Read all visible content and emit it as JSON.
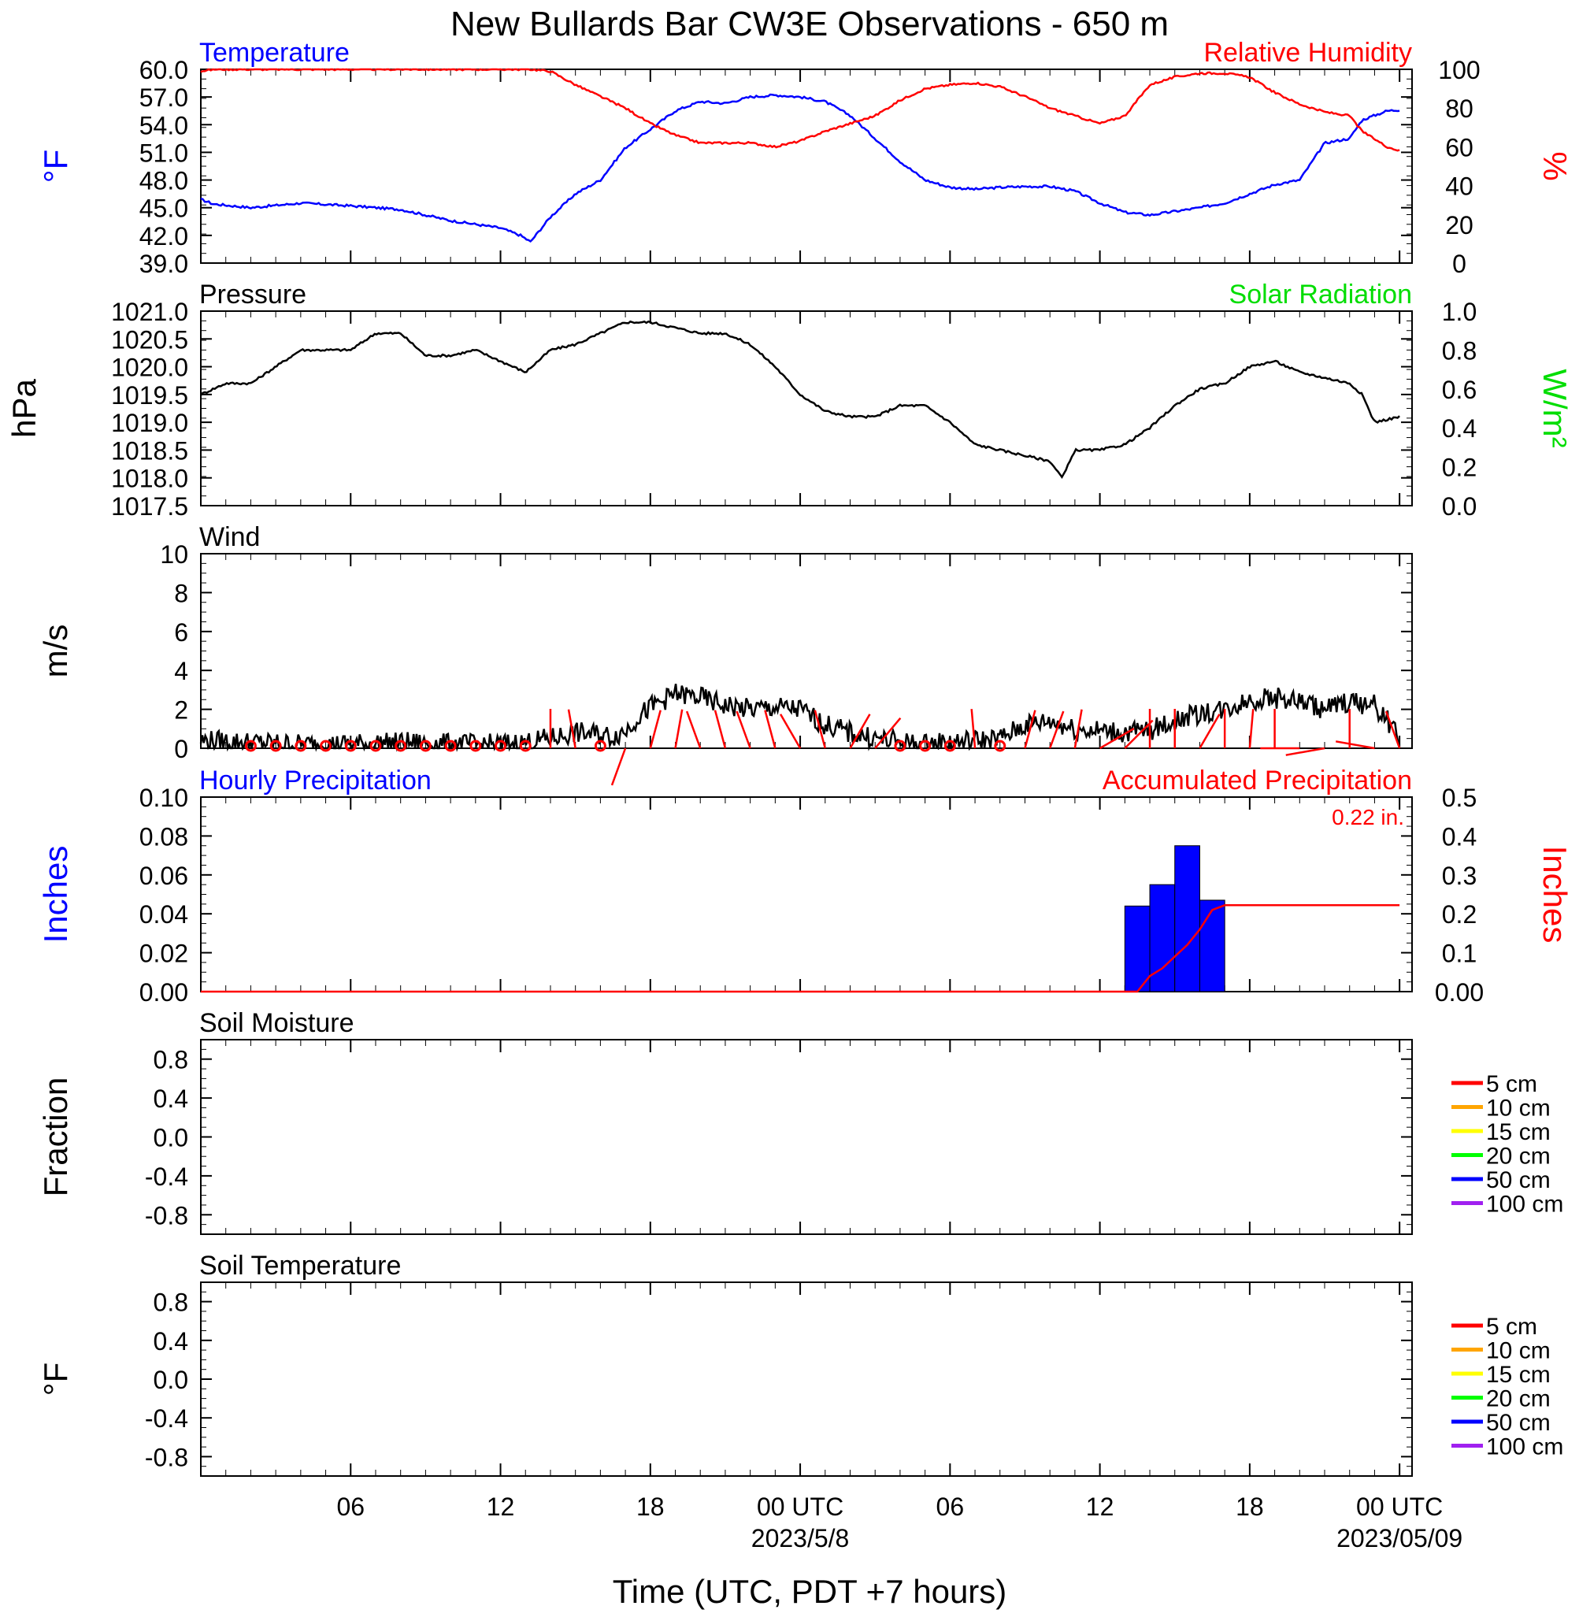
{
  "title": "New Bullards Bar CW3E Observations - 650 m",
  "x_axis_title": "Time (UTC, PDT +7 hours)",
  "x_ticks": [
    {
      "hour": 6,
      "label": "06",
      "date": ""
    },
    {
      "hour": 12,
      "label": "12",
      "date": ""
    },
    {
      "hour": 18,
      "label": "18",
      "date": ""
    },
    {
      "hour": 24,
      "label": "00 UTC",
      "date": "2023/5/8"
    },
    {
      "hour": 30,
      "label": "06",
      "date": ""
    },
    {
      "hour": 36,
      "label": "12",
      "date": ""
    },
    {
      "hour": 42,
      "label": "18",
      "date": ""
    },
    {
      "hour": 48,
      "label": "00 UTC",
      "date": "2023/05/09"
    }
  ],
  "colors": {
    "temperature": "#0000ff",
    "humidity": "#ff0000",
    "solar": "#00dd00",
    "pressure": "#000000",
    "wind": "#000000",
    "barbs": "#ff0000",
    "precip_bar": "#0000ff",
    "accum": "#ff0000"
  },
  "chart_data": [
    {
      "type": "line",
      "id": "temperature-rh",
      "title_left": "Temperature",
      "title_right": "Relative Humidity",
      "ylabel_left": "°F",
      "ylabel_right": "%",
      "ylim_left": [
        39,
        60
      ],
      "ylim_right": [
        0,
        100
      ],
      "yticks_left": [
        "60.0",
        "57.0",
        "54.0",
        "51.0",
        "48.0",
        "45.0",
        "42.0",
        "39.0"
      ],
      "yticks_right": [
        "100",
        "80",
        "60",
        "40",
        "20",
        "0"
      ],
      "x_hours": [
        0,
        0.5,
        2,
        4,
        6,
        8,
        10,
        12,
        12.8,
        13.2,
        14,
        15,
        16,
        17,
        18,
        19,
        20,
        21,
        22,
        23,
        24,
        25,
        26,
        27,
        28,
        29,
        30,
        31,
        32,
        33,
        34,
        35,
        36,
        37,
        38,
        39,
        40,
        41,
        42,
        43,
        44,
        45,
        46,
        46.5,
        47,
        47.5,
        48
      ],
      "series": [
        {
          "name": "Temperature",
          "axis": "left",
          "values": [
            45.9,
            45.4,
            45.0,
            45.5,
            45.2,
            44.8,
            43.6,
            42.8,
            42.0,
            41.3,
            44.0,
            46.5,
            48.0,
            51.5,
            53.5,
            55.5,
            56.5,
            56.3,
            57.0,
            57.2,
            57.0,
            56.5,
            55.0,
            52.5,
            50.0,
            48.0,
            47.2,
            47.0,
            47.2,
            47.3,
            47.3,
            46.8,
            45.5,
            44.5,
            44.2,
            44.6,
            45.0,
            45.5,
            46.5,
            47.5,
            48.0,
            52.0,
            52.5,
            54.5,
            55.0,
            55.5,
            55.6
          ]
        },
        {
          "name": "Relative Humidity",
          "axis": "right",
          "values": [
            99,
            100,
            100,
            100,
            100,
            100,
            100,
            100,
            100,
            100,
            99,
            92,
            86,
            80,
            72,
            66,
            62,
            62,
            62,
            60,
            63,
            68,
            72,
            76,
            84,
            90,
            92,
            93,
            91,
            86,
            80,
            76,
            72,
            76,
            92,
            96,
            98,
            98,
            96,
            88,
            82,
            78,
            76,
            68,
            64,
            60,
            58
          ]
        }
      ]
    },
    {
      "type": "line",
      "id": "pressure",
      "title_left": "Pressure",
      "title_right": "Solar Radiation",
      "ylabel_left": "hPa",
      "ylabel_right": "W/m²",
      "ylim_left": [
        1017.5,
        1021.0
      ],
      "ylim_right": [
        0,
        1
      ],
      "yticks_left": [
        "1021.0",
        "1020.5",
        "1020.0",
        "1019.5",
        "1019.0",
        "1018.5",
        "1018.0",
        "1017.5"
      ],
      "yticks_right": [
        "1.0",
        "0.8",
        "0.6",
        "0.4",
        "0.2",
        "0.0"
      ],
      "x_hours": [
        0,
        1,
        2,
        3,
        4,
        5,
        6,
        7,
        8,
        9,
        10,
        11,
        12,
        13,
        14,
        15,
        16,
        17,
        18,
        19,
        20,
        21,
        22,
        23,
        24,
        25,
        26,
        27,
        28,
        29,
        30,
        31,
        32,
        33,
        34,
        34.5,
        35,
        36,
        37,
        38,
        39,
        40,
        41,
        42,
        43,
        44,
        45,
        46,
        46.5,
        47,
        48
      ],
      "series": [
        {
          "name": "Pressure",
          "axis": "left",
          "values": [
            1019.5,
            1019.7,
            1019.7,
            1020.0,
            1020.3,
            1020.3,
            1020.3,
            1020.6,
            1020.6,
            1020.2,
            1020.2,
            1020.3,
            1020.1,
            1019.9,
            1020.3,
            1020.4,
            1020.6,
            1020.8,
            1020.8,
            1020.7,
            1020.6,
            1020.6,
            1020.4,
            1020.0,
            1019.5,
            1019.2,
            1019.1,
            1019.1,
            1019.3,
            1019.3,
            1019.0,
            1018.6,
            1018.5,
            1018.4,
            1018.3,
            1018.0,
            1018.5,
            1018.5,
            1018.6,
            1018.9,
            1019.3,
            1019.6,
            1019.7,
            1020.0,
            1020.1,
            1019.9,
            1019.8,
            1019.7,
            1019.5,
            1019.0,
            1019.1
          ]
        }
      ]
    },
    {
      "type": "line",
      "id": "wind",
      "title_left": "Wind",
      "ylabel_left": "m/s",
      "ylim_left": [
        0,
        10
      ],
      "yticks_left": [
        "10",
        "8",
        "6",
        "4",
        "2",
        "0"
      ],
      "x_hours": [
        0,
        2,
        4,
        6,
        8,
        10,
        12,
        13,
        14,
        15,
        16,
        16.5,
        17,
        17.5,
        18,
        19,
        20,
        21,
        22,
        23,
        24,
        25,
        26,
        27,
        28,
        29,
        30,
        31,
        32,
        33,
        34,
        35,
        36,
        37,
        38,
        39,
        40,
        41,
        42,
        43,
        44,
        45,
        46,
        47,
        47.5,
        48
      ],
      "series": [
        {
          "name": "Wind speed",
          "axis": "left",
          "values": [
            0.4,
            0.3,
            0.2,
            0.2,
            0.3,
            0.2,
            0.2,
            0.3,
            0.5,
            0.8,
            0.7,
            0.6,
            0.9,
            1.6,
            2.1,
            2.8,
            2.6,
            2.2,
            2.0,
            2.1,
            2.0,
            1.2,
            0.8,
            0.5,
            0.3,
            0.2,
            0.3,
            0.4,
            0.5,
            1.2,
            1.4,
            1.0,
            0.9,
            0.8,
            0.9,
            1.4,
            1.8,
            2.0,
            2.5,
            2.6,
            2.4,
            2.0,
            2.4,
            2.2,
            1.5,
            0.4
          ]
        }
      ],
      "barbs": [
        {
          "hour": 2,
          "calm": true
        },
        {
          "hour": 3,
          "calm": true
        },
        {
          "hour": 4,
          "calm": true
        },
        {
          "hour": 5,
          "calm": true
        },
        {
          "hour": 6,
          "calm": true
        },
        {
          "hour": 7,
          "calm": true
        },
        {
          "hour": 8,
          "calm": true
        },
        {
          "hour": 9,
          "calm": true
        },
        {
          "hour": 10,
          "calm": true
        },
        {
          "hour": 11,
          "calm": true
        },
        {
          "hour": 12,
          "calm": true
        },
        {
          "hour": 13,
          "calm": true
        },
        {
          "hour": 14,
          "dir": 180
        },
        {
          "hour": 15,
          "dir": 170
        },
        {
          "hour": 16,
          "calm": true
        },
        {
          "hour": 17,
          "dir": 20
        },
        {
          "hour": 18,
          "dir": 195
        },
        {
          "hour": 19,
          "dir": 190
        },
        {
          "hour": 20,
          "dir": 160
        },
        {
          "hour": 21,
          "dir": 165
        },
        {
          "hour": 22,
          "dir": 160
        },
        {
          "hour": 23,
          "dir": 165
        },
        {
          "hour": 24,
          "dir": 150
        },
        {
          "hour": 25,
          "dir": 165
        },
        {
          "hour": 26,
          "dir": 210
        },
        {
          "hour": 27,
          "dir": 220
        },
        {
          "hour": 28,
          "calm": true
        },
        {
          "hour": 29,
          "calm": true
        },
        {
          "hour": 30,
          "calm": true
        },
        {
          "hour": 31,
          "dir": 175
        },
        {
          "hour": 32,
          "calm": true
        },
        {
          "hour": 33,
          "dir": 195
        },
        {
          "hour": 34,
          "dir": 200
        },
        {
          "hour": 35,
          "dir": 190
        },
        {
          "hour": 36,
          "dir": 240
        },
        {
          "hour": 37,
          "dir": 225
        },
        {
          "hour": 38,
          "dir": 180
        },
        {
          "hour": 39,
          "dir": 180
        },
        {
          "hour": 40,
          "dir": 210
        },
        {
          "hour": 41,
          "dir": 180
        },
        {
          "hour": 42,
          "dir": 185
        },
        {
          "hour": 43,
          "dir": 180
        },
        {
          "hour": 44,
          "dir": 90
        },
        {
          "hour": 45,
          "dir": 80
        },
        {
          "hour": 46,
          "dir": 180
        },
        {
          "hour": 47,
          "dir": 100
        },
        {
          "hour": 48,
          "dir": 160
        }
      ]
    },
    {
      "type": "bar",
      "id": "precipitation",
      "title_left": "Hourly Precipitation",
      "title_right": "Accumulated Precipitation",
      "total_label": "0.22 in.",
      "ylabel_left": "Inches",
      "ylabel_right": "Inches",
      "ylim_left": [
        0,
        0.1
      ],
      "ylim_right": [
        0,
        0.5
      ],
      "yticks_left": [
        "0.10",
        "0.08",
        "0.06",
        "0.04",
        "0.02",
        "0.00"
      ],
      "yticks_right": [
        "0.5",
        "0.4",
        "0.3",
        "0.2",
        "0.1",
        "0.00"
      ],
      "bars": [
        {
          "start_hour": 37,
          "end_hour": 38,
          "value": 0.044
        },
        {
          "start_hour": 38,
          "end_hour": 39,
          "value": 0.055
        },
        {
          "start_hour": 39,
          "end_hour": 40,
          "value": 0.075
        },
        {
          "start_hour": 40,
          "end_hour": 41,
          "value": 0.047
        }
      ],
      "accum_x_hours": [
        0,
        37.5,
        38,
        38.5,
        39,
        39.5,
        40,
        40.5,
        41,
        48
      ],
      "accum_values": [
        0,
        0,
        0.04,
        0.06,
        0.09,
        0.12,
        0.16,
        0.21,
        0.222,
        0.222
      ]
    },
    {
      "type": "line",
      "id": "soil-moisture",
      "title_left": "Soil Moisture",
      "ylabel_left": "Fraction",
      "ylim_left": [
        -1,
        1
      ],
      "yticks_left": [
        "0.8",
        "0.4",
        "0.0",
        "-0.4",
        "-0.8"
      ],
      "legend": [
        {
          "label": "5 cm",
          "color": "#ff0000"
        },
        {
          "label": "10 cm",
          "color": "#ffa500"
        },
        {
          "label": "15 cm",
          "color": "#ffff00"
        },
        {
          "label": "20 cm",
          "color": "#00ff00"
        },
        {
          "label": "50 cm",
          "color": "#0000ff"
        },
        {
          "label": "100 cm",
          "color": "#a020f0"
        }
      ]
    },
    {
      "type": "line",
      "id": "soil-temperature",
      "title_left": "Soil Temperature",
      "ylabel_left": "°F",
      "ylim_left": [
        -1,
        1
      ],
      "yticks_left": [
        "0.8",
        "0.4",
        "0.0",
        "-0.4",
        "-0.8"
      ],
      "legend": [
        {
          "label": "5 cm",
          "color": "#ff0000"
        },
        {
          "label": "10 cm",
          "color": "#ffa500"
        },
        {
          "label": "15 cm",
          "color": "#ffff00"
        },
        {
          "label": "20 cm",
          "color": "#00ff00"
        },
        {
          "label": "50 cm",
          "color": "#0000ff"
        },
        {
          "label": "100 cm",
          "color": "#a020f0"
        }
      ]
    }
  ]
}
